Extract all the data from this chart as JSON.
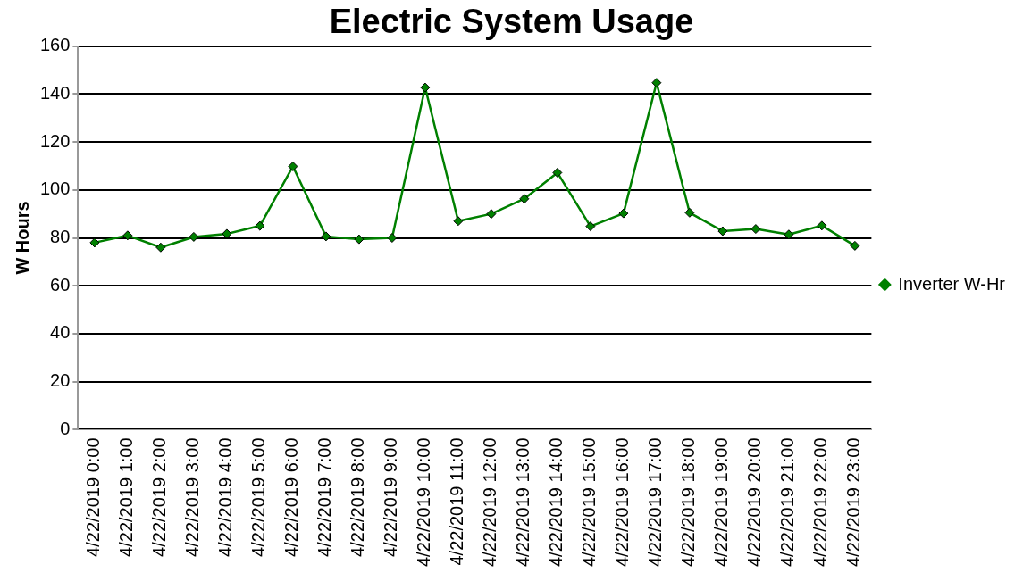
{
  "chart_data": {
    "type": "line",
    "title": "Electric System Usage",
    "ylabel": "W Hours",
    "categories": [
      "4/22/2019 0:00",
      "4/22/2019 1:00",
      "4/22/2019 2:00",
      "4/22/2019 3:00",
      "4/22/2019 4:00",
      "4/22/2019 5:00",
      "4/22/2019 6:00",
      "4/22/2019 7:00",
      "4/22/2019 8:00",
      "4/22/2019 9:00",
      "4/22/2019 10:00",
      "4/22/2019 11:00",
      "4/22/2019 12:00",
      "4/22/2019 13:00",
      "4/22/2019 14:00",
      "4/22/2019 15:00",
      "4/22/2019 16:00",
      "4/22/2019 17:00",
      "4/22/2019 18:00",
      "4/22/2019 19:00",
      "4/22/2019 20:00",
      "4/22/2019 21:00",
      "4/22/2019 22:00",
      "4/22/2019 23:00"
    ],
    "series": [
      {
        "name": "Inverter W-Hr",
        "color": "#008000",
        "values": [
          78,
          81,
          76,
          80.4,
          81.7,
          85,
          109.8,
          80.6,
          79.4,
          80,
          142.7,
          87,
          90,
          96.3,
          107.2,
          84.8,
          90.2,
          144.7,
          90.5,
          82.8,
          83.7,
          81.4,
          85.1,
          76.7
        ]
      }
    ],
    "ylim": [
      0,
      160
    ],
    "yticks": [
      0,
      20,
      40,
      60,
      80,
      100,
      120,
      140,
      160
    ],
    "grid": "y",
    "legend": "right",
    "marker": "diamond",
    "line_style": "solid"
  }
}
